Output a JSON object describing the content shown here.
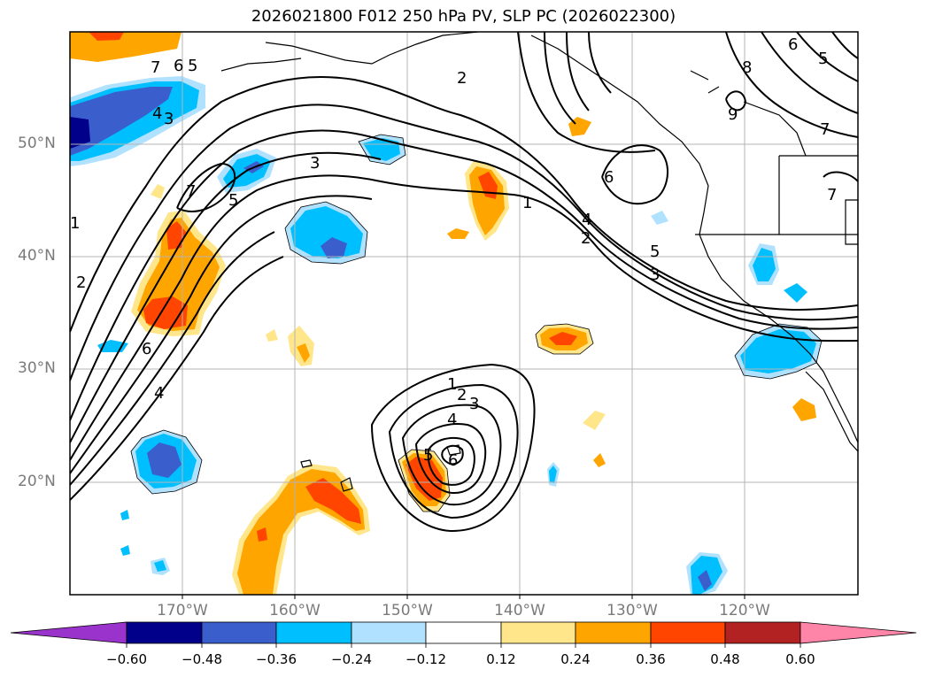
{
  "title": "2026021800 F012 250 hPa PV, SLP PC (2026022300)",
  "lat_labels": [
    "50°N",
    "40°N",
    "30°N",
    "20°N"
  ],
  "lon_labels": [
    "170°W",
    "160°W",
    "150°W",
    "140°W",
    "130°W",
    "120°W"
  ],
  "colorbar": {
    "ticks": [
      "−0.60",
      "−0.48",
      "−0.36",
      "−0.24",
      "−0.12",
      "0.12",
      "0.24",
      "0.36",
      "0.48",
      "0.60"
    ],
    "colors": [
      "#9933cc",
      "#00008b",
      "#3a5fcd",
      "#00bfff",
      "#b0e2ff",
      "#ffffff",
      "#ffe68a",
      "#ffa500",
      "#ff4500",
      "#b22222",
      "#ff85a8"
    ]
  },
  "contour_labels": {
    "nw_7": "7",
    "nw_6": "6",
    "nw_5": "5",
    "nw_4": "4",
    "nw_3": "3",
    "w_1": "1",
    "w_2": "2",
    "w_6": "6",
    "w_4": "4",
    "w_7": "7",
    "w_5": "5",
    "c_3": "3",
    "n_2": "2",
    "ne_6": "6",
    "ne_8": "8",
    "ne_9": "9",
    "ne_5": "5",
    "ne_7": "7",
    "ne_7b": "7",
    "e_6": "6",
    "e_1": "1",
    "e_4": "4",
    "e_2": "2",
    "e_5": "5",
    "e_3": "3",
    "s_1": "1",
    "s_2": "2",
    "s_3": "3",
    "s_4": "4",
    "s_5": "5",
    "s_6": "6"
  }
}
